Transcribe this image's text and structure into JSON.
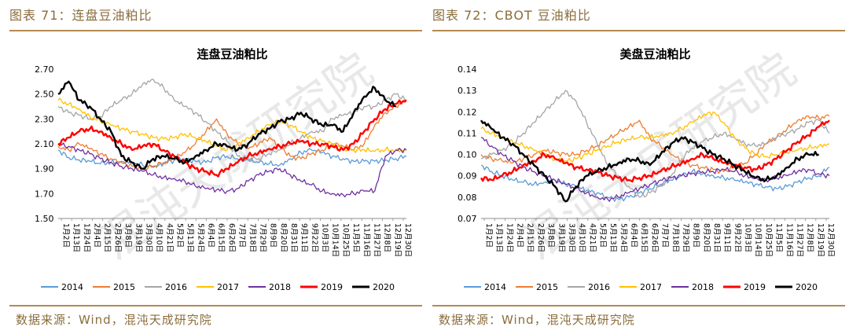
{
  "panels": [
    {
      "figure_title": "图表 71：连盘豆油粕比",
      "source": "数据来源：Wind，混沌天成研究院",
      "watermark": "混沌天成研究院"
    },
    {
      "figure_title": "图表 72：CBOT 豆油粕比",
      "source": "数据来源：Wind，混沌天成研究院",
      "watermark": "混沌天成研究院"
    }
  ],
  "chart_data": [
    {
      "type": "line",
      "title": "连盘豆油粕比",
      "xlabel": "",
      "ylabel": "",
      "ylim": [
        1.5,
        2.7
      ],
      "yticks": [
        "1.50",
        "1.70",
        "1.90",
        "2.10",
        "2.30",
        "2.50",
        "2.70"
      ],
      "x_tick_labels": [
        "1月2日",
        "1月13日",
        "1月24日",
        "2月4日",
        "2月15日",
        "2月26日",
        "3月8日",
        "3月19日",
        "3月30日",
        "4月10日",
        "4月21日",
        "5月2日",
        "5月13日",
        "5月24日",
        "6月4日",
        "6月15日",
        "6月26日",
        "7月7日",
        "7月18日",
        "7月29日",
        "8月9日",
        "8月20日",
        "8月31日",
        "9月11日",
        "9月22日",
        "10月3日",
        "10月14日",
        "10月25日",
        "11月5日",
        "11月16日",
        "11月27日",
        "12月8日",
        "12月19日",
        "12月30日"
      ],
      "legend_position": "bottom",
      "grid": false,
      "series": [
        {
          "name": "2014",
          "color": "#5b9bd5",
          "values": [
            2.05,
            1.99,
            1.97,
            1.96,
            1.94,
            1.95,
            1.96,
            1.95,
            1.93,
            1.91,
            1.94,
            1.97,
            1.98,
            1.96,
            1.95,
            1.99,
            2.0,
            1.98,
            1.97,
            1.95,
            1.94,
            1.93,
            1.98,
            2.03,
            2.05,
            2.03,
            2.0,
            1.98,
            1.96,
            1.96,
            1.96,
            1.97,
            1.98,
            2.0
          ]
        },
        {
          "name": "2015",
          "color": "#ed7d31",
          "values": [
            2.08,
            2.05,
            2.1,
            2.06,
            2.02,
            1.98,
            1.95,
            1.92,
            1.9,
            1.92,
            1.95,
            1.98,
            2.03,
            2.1,
            2.2,
            2.3,
            2.18,
            2.1,
            2.06,
            2.1,
            2.15,
            2.08,
            2.0,
            1.98,
            2.02,
            2.05,
            2.1,
            2.08,
            2.05,
            2.1,
            2.25,
            2.35,
            2.4,
            2.45
          ]
        },
        {
          "name": "2016",
          "color": "#a5a5a5",
          "values": [
            2.4,
            2.35,
            2.33,
            2.3,
            2.32,
            2.4,
            2.45,
            2.5,
            2.58,
            2.62,
            2.55,
            2.45,
            2.4,
            2.35,
            2.28,
            2.2,
            2.12,
            2.0,
            1.98,
            1.98,
            2.02,
            2.05,
            2.1,
            2.15,
            2.2,
            2.2,
            2.3,
            2.33,
            2.35,
            2.4,
            2.4,
            2.45,
            2.5,
            2.45
          ]
        },
        {
          "name": "2017",
          "color": "#ffc000",
          "values": [
            2.45,
            2.42,
            2.38,
            2.32,
            2.28,
            2.25,
            2.22,
            2.2,
            2.18,
            2.15,
            2.14,
            2.15,
            2.18,
            2.15,
            2.12,
            2.08,
            2.05,
            2.1,
            2.15,
            2.2,
            2.25,
            2.28,
            2.25,
            2.2,
            2.15,
            2.12,
            2.1,
            2.06,
            2.05,
            2.05,
            2.04,
            2.05,
            2.05,
            2.05
          ]
        },
        {
          "name": "2018",
          "color": "#7030a0",
          "values": [
            2.1,
            2.08,
            2.05,
            2.02,
            1.98,
            1.95,
            1.92,
            1.9,
            1.88,
            1.85,
            1.83,
            1.82,
            1.8,
            1.76,
            1.74,
            1.73,
            1.72,
            1.74,
            1.8,
            1.85,
            1.88,
            1.9,
            1.85,
            1.8,
            1.77,
            1.72,
            1.7,
            1.69,
            1.7,
            1.72,
            1.72,
            2.0,
            2.05,
            2.05
          ]
        },
        {
          "name": "2019",
          "color": "#ff0000",
          "values": [
            2.1,
            2.15,
            2.2,
            2.22,
            2.2,
            2.15,
            2.1,
            2.05,
            2.08,
            2.1,
            2.05,
            2.0,
            1.95,
            1.9,
            1.88,
            1.85,
            1.9,
            1.95,
            2.0,
            2.03,
            2.06,
            2.08,
            2.1,
            2.12,
            2.1,
            2.1,
            2.08,
            2.05,
            2.1,
            2.2,
            2.3,
            2.38,
            2.42,
            2.45
          ]
        },
        {
          "name": "2020",
          "color": "#000000",
          "values": [
            2.5,
            2.6,
            2.45,
            2.4,
            2.3,
            2.2,
            2.0,
            1.95,
            1.9,
            1.98,
            2.0,
            1.98,
            1.95,
            2.0,
            2.05,
            2.1,
            2.08,
            2.05,
            2.1,
            2.18,
            2.22,
            2.28,
            2.3,
            2.35,
            2.3,
            2.25,
            2.25,
            2.2,
            2.35,
            2.48,
            2.55,
            2.45,
            2.4
          ]
        }
      ]
    },
    {
      "type": "line",
      "title": "美盘豆油粕比",
      "xlabel": "",
      "ylabel": "",
      "ylim": [
        0.07,
        0.14
      ],
      "yticks": [
        "0.07",
        "0.08",
        "0.09",
        "0.10",
        "0.11",
        "0.12",
        "0.13",
        "0.14"
      ],
      "x_tick_labels": [
        "1月2日",
        "1月13日",
        "1月24日",
        "2月4日",
        "2月15日",
        "2月26日",
        "3月8日",
        "3月19日",
        "3月30日",
        "4月10日",
        "4月21日",
        "5月2日",
        "5月13日",
        "5月24日",
        "6月4日",
        "6月15日",
        "6月26日",
        "7月7日",
        "7月18日",
        "7月29日",
        "8月9日",
        "8月20日",
        "8月31日",
        "9月11日",
        "9月22日",
        "10月3日",
        "10月14日",
        "10月25日",
        "11月5日",
        "11月16日",
        "11月27日",
        "12月8日",
        "12月19日",
        "12月30日"
      ],
      "legend_position": "bottom",
      "grid": false,
      "series": [
        {
          "name": "2014",
          "color": "#5b9bd5",
          "values": [
            0.095,
            0.092,
            0.09,
            0.088,
            0.087,
            0.086,
            0.087,
            0.088,
            0.086,
            0.085,
            0.083,
            0.082,
            0.08,
            0.079,
            0.08,
            0.082,
            0.084,
            0.086,
            0.088,
            0.09,
            0.092,
            0.091,
            0.09,
            0.089,
            0.088,
            0.087,
            0.086,
            0.085,
            0.084,
            0.085,
            0.087,
            0.089,
            0.09,
            0.094
          ]
        },
        {
          "name": "2015",
          "color": "#ed7d31",
          "values": [
            0.1,
            0.098,
            0.097,
            0.096,
            0.098,
            0.1,
            0.102,
            0.101,
            0.1,
            0.1,
            0.102,
            0.104,
            0.107,
            0.11,
            0.113,
            0.116,
            0.108,
            0.104,
            0.1,
            0.097,
            0.095,
            0.094,
            0.093,
            0.092,
            0.094,
            0.096,
            0.1,
            0.105,
            0.108,
            0.112,
            0.116,
            0.118,
            0.117,
            0.118
          ]
        },
        {
          "name": "2016",
          "color": "#a5a5a5",
          "values": [
            0.098,
            0.1,
            0.102,
            0.105,
            0.11,
            0.115,
            0.12,
            0.125,
            0.13,
            0.125,
            0.115,
            0.105,
            0.095,
            0.09,
            0.085,
            0.08,
            0.082,
            0.085,
            0.09,
            0.098,
            0.103,
            0.106,
            0.108,
            0.11,
            0.108,
            0.105,
            0.104,
            0.105,
            0.108,
            0.11,
            0.112,
            0.115,
            0.116,
            0.11
          ]
        },
        {
          "name": "2017",
          "color": "#ffc000",
          "values": [
            0.112,
            0.11,
            0.108,
            0.106,
            0.104,
            0.102,
            0.1,
            0.098,
            0.097,
            0.098,
            0.1,
            0.102,
            0.104,
            0.106,
            0.107,
            0.108,
            0.108,
            0.109,
            0.11,
            0.112,
            0.115,
            0.118,
            0.12,
            0.115,
            0.108,
            0.103,
            0.1,
            0.099,
            0.1,
            0.101,
            0.102,
            0.103,
            0.104,
            0.105
          ]
        },
        {
          "name": "2018",
          "color": "#7030a0",
          "values": [
            0.108,
            0.104,
            0.1,
            0.097,
            0.094,
            0.092,
            0.09,
            0.088,
            0.086,
            0.084,
            0.082,
            0.08,
            0.079,
            0.08,
            0.082,
            0.084,
            0.086,
            0.088,
            0.089,
            0.09,
            0.091,
            0.092,
            0.092,
            0.093,
            0.092,
            0.09,
            0.089,
            0.088,
            0.089,
            0.09,
            0.092,
            0.093,
            0.091,
            0.09
          ]
        },
        {
          "name": "2019",
          "color": "#ff0000",
          "values": [
            0.089,
            0.088,
            0.09,
            0.092,
            0.095,
            0.097,
            0.1,
            0.098,
            0.096,
            0.094,
            0.093,
            0.092,
            0.09,
            0.089,
            0.088,
            0.089,
            0.09,
            0.092,
            0.094,
            0.096,
            0.098,
            0.1,
            0.098,
            0.096,
            0.095,
            0.094,
            0.093,
            0.095,
            0.098,
            0.102,
            0.106,
            0.109,
            0.113,
            0.116
          ]
        },
        {
          "name": "2020",
          "color": "#000000",
          "values": [
            0.116,
            0.112,
            0.108,
            0.105,
            0.1,
            0.095,
            0.09,
            0.085,
            0.078,
            0.085,
            0.09,
            0.092,
            0.094,
            0.096,
            0.098,
            0.097,
            0.095,
            0.1,
            0.105,
            0.108,
            0.106,
            0.103,
            0.1,
            0.098,
            0.095,
            0.092,
            0.089,
            0.088,
            0.09,
            0.094,
            0.098,
            0.1,
            0.1
          ]
        }
      ]
    }
  ]
}
